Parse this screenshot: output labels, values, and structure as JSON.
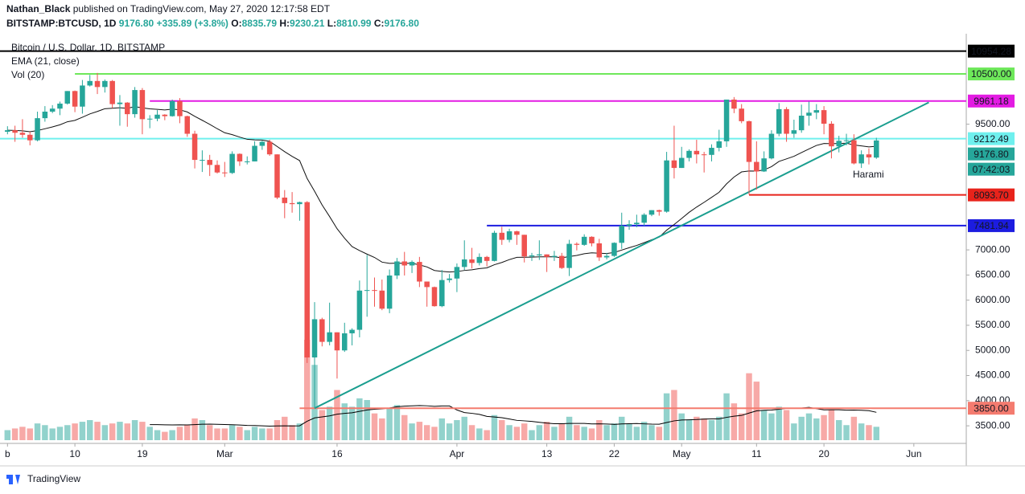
{
  "header": {
    "author": "Nathan_Black",
    "published": "published on TradingView.com, May 27, 2020 12:17:58 EDT",
    "symbol": "BITSTAMP:BTCUSD, 1D",
    "price": "9176.80",
    "change": "+335.89 (+3.8%)",
    "quote": [
      {
        "k": "O:",
        "v": "8835.79"
      },
      {
        "k": "H:",
        "v": "9230.21"
      },
      {
        "k": "L:",
        "v": "8810.99"
      },
      {
        "k": "C:",
        "v": "9176.80"
      }
    ]
  },
  "footer": "TradingView",
  "chart_data": {
    "type": "candlestick",
    "legend": [
      "Bitcoin / U.S. Dollar, 1D, BITSTAMP",
      "EMA (21, close)",
      "Vol (20)"
    ],
    "ema_period": 21,
    "volume_ma_period": 20,
    "up_color": "#26a69a",
    "down_color": "#ef5350",
    "xlim": [
      "2020-01-31",
      "2020-06-08"
    ],
    "ylim": [
      3150,
      11300
    ],
    "yticks": [
      {
        "value": 9500,
        "label": "9500.00"
      },
      {
        "value": 7000,
        "label": "7000.00"
      },
      {
        "value": 6500,
        "label": "6500.00"
      },
      {
        "value": 6000,
        "label": "6000.00"
      },
      {
        "value": 5500,
        "label": "5500.00"
      },
      {
        "value": 5000,
        "label": "5000.00"
      },
      {
        "value": 4500,
        "label": "4500.00"
      },
      {
        "value": 4000,
        "label": "4000.00"
      },
      {
        "value": 3500,
        "label": "3500.00"
      }
    ],
    "xticks": [
      {
        "value": "2020-02-01",
        "label": "b"
      },
      {
        "value": "2020-02-10",
        "label": "10"
      },
      {
        "value": "2020-02-19",
        "label": "19"
      },
      {
        "value": "2020-03-01",
        "label": "Mar"
      },
      {
        "value": "2020-03-16",
        "label": "16"
      },
      {
        "value": "2020-04-01",
        "label": "Apr"
      },
      {
        "value": "2020-04-13",
        "label": "13"
      },
      {
        "value": "2020-04-22",
        "label": "22"
      },
      {
        "value": "2020-05-01",
        "label": "May"
      },
      {
        "value": "2020-05-11",
        "label": "11"
      },
      {
        "value": "2020-05-20",
        "label": "20"
      },
      {
        "value": "2020-06-01",
        "label": "Jun"
      }
    ],
    "x": [
      "2020-02-01",
      "2020-02-02",
      "2020-02-03",
      "2020-02-04",
      "2020-02-05",
      "2020-02-06",
      "2020-02-07",
      "2020-02-08",
      "2020-02-09",
      "2020-02-10",
      "2020-02-11",
      "2020-02-12",
      "2020-02-13",
      "2020-02-14",
      "2020-02-15",
      "2020-02-16",
      "2020-02-17",
      "2020-02-18",
      "2020-02-19",
      "2020-02-20",
      "2020-02-21",
      "2020-02-22",
      "2020-02-23",
      "2020-02-24",
      "2020-02-25",
      "2020-02-26",
      "2020-02-27",
      "2020-02-28",
      "2020-02-29",
      "2020-03-01",
      "2020-03-02",
      "2020-03-03",
      "2020-03-04",
      "2020-03-05",
      "2020-03-06",
      "2020-03-07",
      "2020-03-08",
      "2020-03-09",
      "2020-03-10",
      "2020-03-11",
      "2020-03-12",
      "2020-03-13",
      "2020-03-14",
      "2020-03-15",
      "2020-03-16",
      "2020-03-17",
      "2020-03-18",
      "2020-03-19",
      "2020-03-20",
      "2020-03-21",
      "2020-03-22",
      "2020-03-23",
      "2020-03-24",
      "2020-03-25",
      "2020-03-26",
      "2020-03-27",
      "2020-03-28",
      "2020-03-29",
      "2020-03-30",
      "2020-03-31",
      "2020-04-01",
      "2020-04-02",
      "2020-04-03",
      "2020-04-04",
      "2020-04-05",
      "2020-04-06",
      "2020-04-07",
      "2020-04-08",
      "2020-04-09",
      "2020-04-10",
      "2020-04-11",
      "2020-04-12",
      "2020-04-13",
      "2020-04-14",
      "2020-04-15",
      "2020-04-16",
      "2020-04-17",
      "2020-04-18",
      "2020-04-19",
      "2020-04-20",
      "2020-04-21",
      "2020-04-22",
      "2020-04-23",
      "2020-04-24",
      "2020-04-25",
      "2020-04-26",
      "2020-04-27",
      "2020-04-28",
      "2020-04-29",
      "2020-04-30",
      "2020-05-01",
      "2020-05-02",
      "2020-05-03",
      "2020-05-04",
      "2020-05-05",
      "2020-05-06",
      "2020-05-07",
      "2020-05-08",
      "2020-05-09",
      "2020-05-10",
      "2020-05-11",
      "2020-05-12",
      "2020-05-13",
      "2020-05-14",
      "2020-05-15",
      "2020-05-16",
      "2020-05-17",
      "2020-05-18",
      "2020-05-19",
      "2020-05-20",
      "2020-05-21",
      "2020-05-22",
      "2020-05-23",
      "2020-05-24",
      "2020-05-25",
      "2020-05-26",
      "2020-05-27"
    ],
    "ohlc": [
      [
        9350,
        9460,
        9300,
        9380
      ],
      [
        9380,
        9470,
        9150,
        9330
      ],
      [
        9330,
        9600,
        9230,
        9290
      ],
      [
        9290,
        9350,
        9080,
        9180
      ],
      [
        9180,
        9750,
        9160,
        9620
      ],
      [
        9620,
        9860,
        9550,
        9750
      ],
      [
        9750,
        9880,
        9720,
        9810
      ],
      [
        9810,
        9950,
        9680,
        9910
      ],
      [
        9910,
        10160,
        9890,
        10160
      ],
      [
        10160,
        10170,
        9740,
        9850
      ],
      [
        9850,
        10380,
        9710,
        10270
      ],
      [
        10270,
        10480,
        10250,
        10360
      ],
      [
        10360,
        10520,
        10100,
        10240
      ],
      [
        10240,
        10390,
        10130,
        10360
      ],
      [
        10360,
        10380,
        9820,
        9900
      ],
      [
        9900,
        10080,
        9470,
        9930
      ],
      [
        9930,
        9940,
        9450,
        9700
      ],
      [
        9700,
        10240,
        9630,
        10180
      ],
      [
        10180,
        10220,
        9300,
        9600
      ],
      [
        9600,
        9680,
        9420,
        9610
      ],
      [
        9610,
        9780,
        9560,
        9690
      ],
      [
        9690,
        9700,
        9580,
        9660
      ],
      [
        9660,
        9990,
        9650,
        9960
      ],
      [
        9960,
        10020,
        9520,
        9660
      ],
      [
        9660,
        9670,
        9250,
        9310
      ],
      [
        9310,
        9370,
        8620,
        8790
      ],
      [
        8790,
        8980,
        8550,
        8790
      ],
      [
        8790,
        8890,
        8470,
        8690
      ],
      [
        8690,
        8780,
        8520,
        8540
      ],
      [
        8540,
        8750,
        8450,
        8530
      ],
      [
        8530,
        8960,
        8510,
        8910
      ],
      [
        8910,
        8920,
        8670,
        8760
      ],
      [
        8760,
        8860,
        8700,
        8760
      ],
      [
        8760,
        9160,
        8760,
        9070
      ],
      [
        9070,
        9170,
        8990,
        9150
      ],
      [
        9150,
        9190,
        8870,
        8900
      ],
      [
        8900,
        8900,
        8010,
        8040
      ],
      [
        8040,
        8190,
        7630,
        7930
      ],
      [
        7930,
        8150,
        7740,
        7910
      ],
      [
        7910,
        7960,
        7580,
        7950
      ],
      [
        7950,
        7970,
        4750,
        4860
      ],
      [
        4860,
        5960,
        3850,
        5620
      ],
      [
        5620,
        5650,
        5080,
        5170
      ],
      [
        5170,
        5950,
        5100,
        5360
      ],
      [
        5360,
        5360,
        4440,
        5000
      ],
      [
        5000,
        5550,
        4970,
        5340
      ],
      [
        5340,
        5440,
        5100,
        5410
      ],
      [
        5410,
        6390,
        5260,
        6190
      ],
      [
        6190,
        6900,
        5670,
        6200
      ],
      [
        6200,
        6450,
        5870,
        6190
      ],
      [
        6190,
        6410,
        5800,
        5830
      ],
      [
        5830,
        6610,
        5740,
        6490
      ],
      [
        6490,
        6840,
        6420,
        6770
      ],
      [
        6770,
        6960,
        6490,
        6690
      ],
      [
        6690,
        6790,
        6540,
        6760
      ],
      [
        6760,
        6860,
        6260,
        6370
      ],
      [
        6370,
        6370,
        5870,
        6260
      ],
      [
        6260,
        6270,
        5870,
        5880
      ],
      [
        5880,
        6600,
        5860,
        6400
      ],
      [
        6400,
        6520,
        6350,
        6430
      ],
      [
        6430,
        6730,
        6160,
        6660
      ],
      [
        6660,
        7190,
        6600,
        6810
      ],
      [
        6810,
        7040,
        6630,
        6740
      ],
      [
        6740,
        6930,
        6690,
        6860
      ],
      [
        6860,
        6880,
        6670,
        6780
      ],
      [
        6780,
        7380,
        6770,
        7340
      ],
      [
        7340,
        7460,
        7100,
        7200
      ],
      [
        7200,
        7420,
        7150,
        7370
      ],
      [
        7370,
        7380,
        7100,
        7300
      ],
      [
        7300,
        7300,
        6750,
        6870
      ],
      [
        6870,
        6940,
        6780,
        6890
      ],
      [
        6890,
        7190,
        6800,
        6910
      ],
      [
        6910,
        6910,
        6560,
        6860
      ],
      [
        6860,
        6980,
        6780,
        6880
      ],
      [
        6880,
        6940,
        6620,
        6640
      ],
      [
        6640,
        7200,
        6480,
        7120
      ],
      [
        7120,
        7150,
        6990,
        7100
      ],
      [
        7100,
        7310,
        7080,
        7260
      ],
      [
        7260,
        7270,
        7070,
        7130
      ],
      [
        7130,
        7220,
        6780,
        6850
      ],
      [
        6850,
        6940,
        6810,
        6880
      ],
      [
        6880,
        7150,
        6860,
        7140
      ],
      [
        7140,
        7740,
        7020,
        7480
      ],
      [
        7480,
        7590,
        7400,
        7510
      ],
      [
        7510,
        7700,
        7450,
        7540
      ],
      [
        7540,
        7730,
        7480,
        7700
      ],
      [
        7700,
        7790,
        7670,
        7790
      ],
      [
        7790,
        7800,
        7680,
        7760
      ],
      [
        7760,
        8950,
        7740,
        8780
      ],
      [
        8780,
        9470,
        8420,
        8630
      ],
      [
        8630,
        9050,
        8630,
        8830
      ],
      [
        8830,
        9000,
        8760,
        8970
      ],
      [
        8970,
        9190,
        8720,
        8900
      ],
      [
        8900,
        8950,
        8540,
        8890
      ],
      [
        8890,
        9100,
        8760,
        9030
      ],
      [
        9030,
        9390,
        8960,
        9160
      ],
      [
        9160,
        9990,
        9050,
        9990
      ],
      [
        9990,
        10040,
        9720,
        9810
      ],
      [
        9810,
        9900,
        9520,
        9560
      ],
      [
        9560,
        9570,
        8100,
        8750
      ],
      [
        8750,
        9160,
        8200,
        8560
      ],
      [
        8560,
        8960,
        8550,
        8820
      ],
      [
        8820,
        9380,
        8800,
        9310
      ],
      [
        9310,
        9920,
        9260,
        9800
      ],
      [
        9800,
        9840,
        9150,
        9310
      ],
      [
        9310,
        9590,
        9230,
        9380
      ],
      [
        9380,
        9890,
        9330,
        9670
      ],
      [
        9670,
        9950,
        9470,
        9730
      ],
      [
        9730,
        9900,
        9600,
        9780
      ],
      [
        9780,
        9860,
        9300,
        9510
      ],
      [
        9510,
        9560,
        8820,
        9060
      ],
      [
        9060,
        9270,
        8940,
        9170
      ],
      [
        9170,
        9310,
        9080,
        9180
      ],
      [
        9180,
        9300,
        8700,
        8720
      ],
      [
        8720,
        8980,
        8630,
        8900
      ],
      [
        8900,
        9020,
        8700,
        8840
      ],
      [
        8835.79,
        9230.21,
        8810.99,
        9176.8
      ]
    ],
    "volume": [
      6000,
      7000,
      8000,
      7000,
      10000,
      9000,
      7000,
      8000,
      9000,
      10000,
      11000,
      12000,
      11000,
      9000,
      10000,
      11000,
      10000,
      12000,
      11000,
      8000,
      6000,
      5000,
      6000,
      8000,
      9000,
      13000,
      12000,
      9000,
      7000,
      7000,
      9000,
      8000,
      6000,
      8000,
      7000,
      7000,
      12000,
      14000,
      9000,
      10000,
      60000,
      45000,
      18000,
      20000,
      30000,
      22000,
      20000,
      25000,
      24000,
      16000,
      13000,
      19000,
      21000,
      15000,
      10000,
      11000,
      9000,
      8000,
      13000,
      10000,
      12000,
      14000,
      9000,
      7000,
      6000,
      15000,
      12000,
      9000,
      8000,
      10000,
      6000,
      9000,
      11000,
      8000,
      10000,
      14000,
      9000,
      8000,
      7000,
      12000,
      9000,
      10000,
      14000,
      10000,
      8000,
      11000,
      9000,
      8000,
      28000,
      30000,
      16000,
      12000,
      14000,
      13000,
      12000,
      14000,
      28000,
      22000,
      16000,
      40000,
      35000,
      18000,
      16000,
      20000,
      18000,
      10000,
      14000,
      16000,
      13000,
      15000,
      18000,
      12000,
      9000,
      14000,
      10000,
      9000,
      8000
    ],
    "price_lines": [
      {
        "value": 10954.28,
        "color": "#000000",
        "text_color": "#ffffff",
        "from": "2020-01-31"
      },
      {
        "value": 10500,
        "label": "10500.00",
        "color": "#6ee85a",
        "text_color": "#000000",
        "from": "2020-02-10"
      },
      {
        "value": 9961.18,
        "color": "#e31be3",
        "text_color": "#ffffff",
        "from": "2020-02-20"
      },
      {
        "value": 9212.49,
        "color": "#6ff0ee",
        "text_color": "#ffffff",
        "from": "2020-01-31"
      },
      {
        "value": 8093.7,
        "label": "8093.70",
        "color": "#e8231b",
        "text_color": "#ffffff",
        "from": "2020-05-10"
      },
      {
        "value": 7481.94,
        "color": "#1c1ce0",
        "text_color": "#ffffff",
        "from": "2020-04-05"
      },
      {
        "value": 3850,
        "label": "3850.00",
        "color": "#f47b6f",
        "text_color": "#000000",
        "from": "2020-03-11"
      }
    ],
    "trendline": {
      "from": [
        "2020-03-13",
        3850
      ],
      "to": [
        "2020-06-03",
        9934
      ],
      "color": "#1a9e8f"
    },
    "last_price": {
      "value": 9176.8,
      "label": "9176.80",
      "color": "#26a69a"
    },
    "countdown": "07:42:03",
    "annotation": "Harami"
  }
}
